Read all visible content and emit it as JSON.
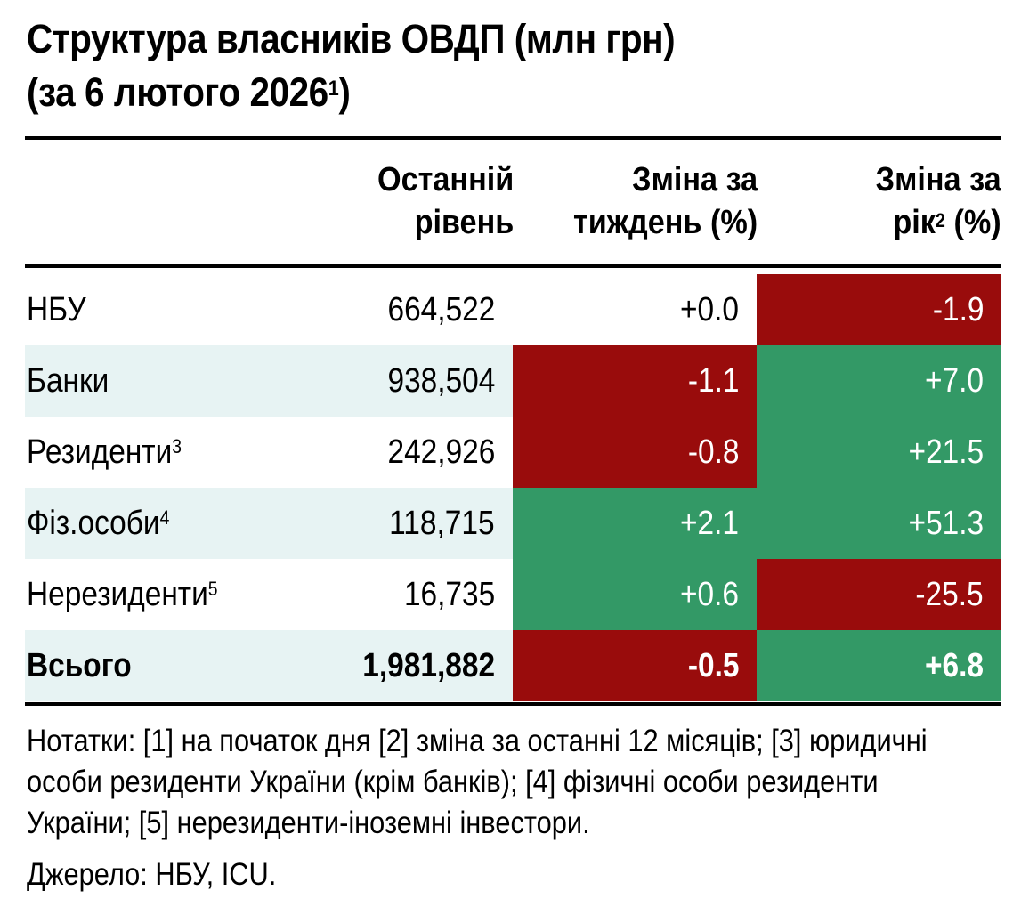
{
  "chart_data": {
    "type": "table",
    "title_line1": "Структура власників ОВДП (млн грн)",
    "title_line2": "(за 6 лютого 2026",
    "title_sup": "1",
    "title_close": ")",
    "columns": [
      {
        "line1": "Останній",
        "line2": "рівень",
        "sup": ""
      },
      {
        "line1": "Зміна за",
        "line2": "тиждень (%)",
        "sup": ""
      },
      {
        "line1": "Зміна за",
        "line2a": "рік",
        "sup": "2",
        "line2b": " (%)"
      }
    ],
    "rows": [
      {
        "label": "НБУ",
        "sup": "",
        "level": "664,522",
        "week": "+0.0",
        "week_status": "neutral",
        "year": "-1.9",
        "year_status": "negative"
      },
      {
        "label": "Банки",
        "sup": "",
        "level": "938,504",
        "week": "-1.1",
        "week_status": "negative",
        "year": "+7.0",
        "year_status": "positive"
      },
      {
        "label": "Резиденти",
        "sup": "3",
        "level": "242,926",
        "week": "-0.8",
        "week_status": "negative",
        "year": "+21.5",
        "year_status": "positive"
      },
      {
        "label": "Фіз.особи",
        "sup": "4",
        "level": "118,715",
        "week": "+2.1",
        "week_status": "positive",
        "year": "+51.3",
        "year_status": "positive"
      },
      {
        "label": "Нерезиденти",
        "sup": "5",
        "level": "16,735",
        "week": "+0.6",
        "week_status": "positive",
        "year": "-25.5",
        "year_status": "negative"
      },
      {
        "label": "Всього",
        "sup": "",
        "level": "1,981,882",
        "week": "-0.5",
        "week_status": "negative",
        "year": "+6.8",
        "year_status": "positive"
      }
    ],
    "notes": "Нотатки: [1] на початок дня [2] зміна за останні 12 місяців; [3] юридичні особи  резиденти України (крім банків); [4] фізичні особи резиденти України; [5] нерезиденти-іноземні інвестори.",
    "source": "Джерело: НБУ, ICU.",
    "colors": {
      "positive": "#339966",
      "negative": "#990c0c",
      "shade": "#e7f3f3"
    }
  }
}
